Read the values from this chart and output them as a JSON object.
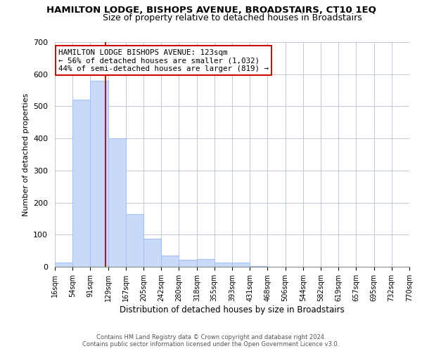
{
  "title": "HAMILTON LODGE, BISHOPS AVENUE, BROADSTAIRS, CT10 1EQ",
  "subtitle": "Size of property relative to detached houses in Broadstairs",
  "xlabel": "Distribution of detached houses by size in Broadstairs",
  "ylabel": "Number of detached properties",
  "bin_edges": [
    16,
    54,
    91,
    129,
    167,
    205,
    242,
    280,
    318,
    355,
    393,
    431,
    468,
    506,
    544,
    582,
    619,
    657,
    695,
    732,
    770
  ],
  "bar_heights": [
    13,
    520,
    580,
    400,
    163,
    87,
    35,
    22,
    24,
    13,
    13,
    3,
    0,
    0,
    0,
    0,
    0,
    0,
    0,
    0
  ],
  "bar_color": "#c9daf8",
  "bar_edge_color": "#a4c2f4",
  "reference_line_x": 123,
  "reference_line_color": "#cc0000",
  "ylim": [
    0,
    700
  ],
  "yticks": [
    0,
    100,
    200,
    300,
    400,
    500,
    600,
    700
  ],
  "annotation_title": "HAMILTON LODGE BISHOPS AVENUE: 123sqm",
  "annotation_line1": "← 56% of detached houses are smaller (1,032)",
  "annotation_line2": "44% of semi-detached houses are larger (819) →",
  "annotation_box_color": "#ffffff",
  "annotation_box_edge_color": "#cc0000",
  "footer_line1": "Contains HM Land Registry data © Crown copyright and database right 2024.",
  "footer_line2": "Contains public sector information licensed under the Open Government Licence v3.0.",
  "background_color": "#ffffff",
  "grid_color": "#c0c8d8",
  "tick_labels": [
    "16sqm",
    "54sqm",
    "91sqm",
    "129sqm",
    "167sqm",
    "205sqm",
    "242sqm",
    "280sqm",
    "318sqm",
    "355sqm",
    "393sqm",
    "431sqm",
    "468sqm",
    "506sqm",
    "544sqm",
    "582sqm",
    "619sqm",
    "657sqm",
    "695sqm",
    "732sqm",
    "770sqm"
  ]
}
